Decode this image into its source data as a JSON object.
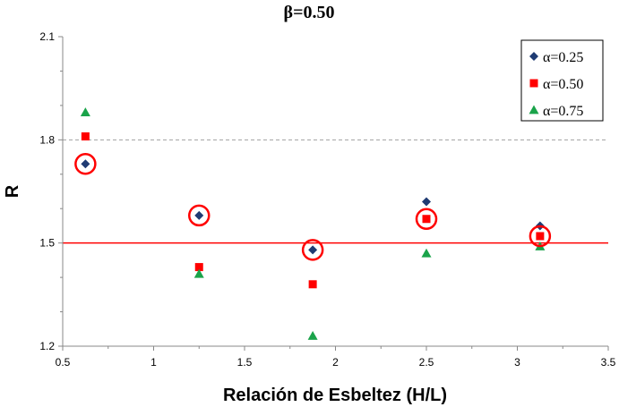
{
  "chart_data": {
    "type": "scatter",
    "title": "β=0.50",
    "xlabel": "Relación de Esbeltez (H/L)",
    "ylabel": "R",
    "xlim": [
      0.5,
      3.5
    ],
    "ylim": [
      1.2,
      2.1
    ],
    "xticks": [
      "0.5",
      "1",
      "1.5",
      "2",
      "2.5",
      "3",
      "3.5"
    ],
    "yticks": [
      "1.2",
      "1.5",
      "1.8",
      "2.1"
    ],
    "grid": false,
    "legend_position": "top-right",
    "reference_lines": [
      {
        "y": 1.8,
        "style": "dashed",
        "color": "#a0a0a0"
      },
      {
        "y": 1.5,
        "style": "solid",
        "color": "#ff0000"
      }
    ],
    "series": [
      {
        "name": "α=0.25",
        "marker": "diamond",
        "color": "#1f3b73",
        "x": [
          0.625,
          1.25,
          1.875,
          2.5,
          3.125
        ],
        "y": [
          1.73,
          1.58,
          1.48,
          1.62,
          1.55
        ]
      },
      {
        "name": "α=0.50",
        "marker": "square",
        "color": "#ff0000",
        "x": [
          0.625,
          1.25,
          1.875,
          2.5,
          3.125
        ],
        "y": [
          1.81,
          1.43,
          1.38,
          1.57,
          1.52
        ]
      },
      {
        "name": "α=0.75",
        "marker": "triangle",
        "color": "#1aa34a",
        "x": [
          0.625,
          1.25,
          1.875,
          2.5,
          3.125
        ],
        "y": [
          1.88,
          1.41,
          1.23,
          1.47,
          1.49
        ]
      }
    ],
    "highlighted_points": {
      "color": "#ff0000",
      "points": [
        {
          "x": 0.625,
          "y": 1.73
        },
        {
          "x": 1.25,
          "y": 1.58
        },
        {
          "x": 1.875,
          "y": 1.48
        },
        {
          "x": 2.5,
          "y": 1.57
        },
        {
          "x": 3.125,
          "y": 1.52
        }
      ]
    }
  }
}
